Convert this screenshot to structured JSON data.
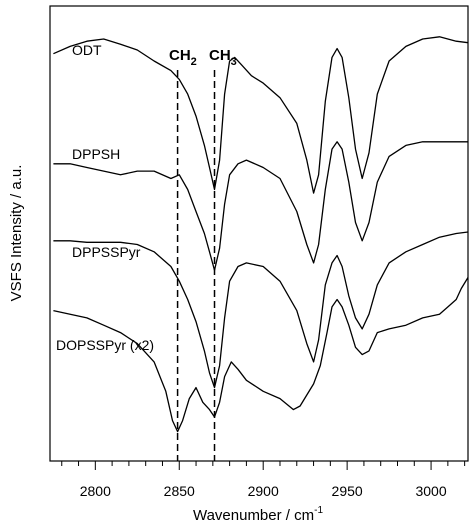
{
  "chart_data": {
    "type": "line",
    "xlabel": "Wavenumber / cm",
    "xlabel_superscript": "-1",
    "ylabel": "VSFS Intensity / a.u.",
    "xlim": [
      2773,
      3022
    ],
    "x_ticks": [
      2800,
      2850,
      2900,
      2950,
      3000
    ],
    "y_ticks_shown": false,
    "grid": false,
    "legend": "none",
    "reference_lines": [
      {
        "x": 2849,
        "style": "dashed",
        "label_main": "CH",
        "label_sub": "2"
      },
      {
        "x": 2871,
        "style": "dashed",
        "label_main": "CH",
        "label_sub": "3"
      }
    ],
    "series": [
      {
        "name": "ODT",
        "x": [
          2775,
          2785,
          2795,
          2805,
          2815,
          2825,
          2835,
          2845,
          2850,
          2855,
          2860,
          2865,
          2868,
          2871,
          2874,
          2877,
          2880,
          2883,
          2887,
          2893,
          2900,
          2910,
          2920,
          2926,
          2930,
          2933,
          2937,
          2941,
          2944,
          2947,
          2951,
          2955,
          2959,
          2963,
          2968,
          2975,
          2985,
          2995,
          3005,
          3015,
          3022
        ],
        "y": [
          4.65,
          4.75,
          4.82,
          4.85,
          4.78,
          4.7,
          4.55,
          4.42,
          4.3,
          4.1,
          3.8,
          3.4,
          3.1,
          2.8,
          3.2,
          4.1,
          4.55,
          4.6,
          4.5,
          4.35,
          4.25,
          4.05,
          3.7,
          3.2,
          2.75,
          3.0,
          4.0,
          4.6,
          4.72,
          4.6,
          4.05,
          3.35,
          2.95,
          3.3,
          4.1,
          4.55,
          4.75,
          4.85,
          4.88,
          4.82,
          4.8
        ]
      },
      {
        "name": "DPPSH",
        "x": [
          2775,
          2785,
          2795,
          2805,
          2815,
          2825,
          2835,
          2845,
          2850,
          2855,
          2860,
          2865,
          2868,
          2871,
          2874,
          2877,
          2880,
          2885,
          2890,
          2900,
          2910,
          2920,
          2926,
          2930,
          2933,
          2937,
          2941,
          2944,
          2947,
          2951,
          2955,
          2959,
          2963,
          2968,
          2975,
          2985,
          2995,
          3005,
          3015,
          3022
        ],
        "y": [
          3.15,
          3.15,
          3.1,
          3.05,
          3.0,
          3.05,
          3.05,
          2.95,
          3.0,
          2.8,
          2.5,
          2.2,
          1.95,
          1.7,
          2.0,
          2.6,
          3.0,
          3.15,
          3.2,
          3.1,
          2.95,
          2.5,
          2.05,
          1.8,
          2.05,
          2.8,
          3.35,
          3.45,
          3.35,
          2.9,
          2.35,
          2.1,
          2.35,
          2.9,
          3.25,
          3.4,
          3.45,
          3.45,
          3.45,
          3.45
        ]
      },
      {
        "name": "DPPSSPyr",
        "x": [
          2775,
          2785,
          2795,
          2805,
          2815,
          2825,
          2835,
          2845,
          2850,
          2855,
          2860,
          2865,
          2868,
          2871,
          2874,
          2877,
          2880,
          2885,
          2890,
          2900,
          2910,
          2920,
          2926,
          2930,
          2933,
          2937,
          2941,
          2944,
          2947,
          2951,
          2955,
          2959,
          2963,
          2968,
          2975,
          2985,
          2995,
          3005,
          3015,
          3022
        ],
        "y": [
          2.1,
          2.1,
          2.08,
          2.08,
          2.08,
          2.05,
          1.95,
          1.75,
          1.55,
          1.3,
          1.0,
          0.6,
          0.3,
          0.1,
          0.4,
          1.05,
          1.55,
          1.75,
          1.8,
          1.75,
          1.55,
          1.15,
          0.7,
          0.45,
          0.75,
          1.5,
          1.8,
          1.9,
          1.75,
          1.35,
          1.05,
          0.9,
          1.1,
          1.5,
          1.8,
          1.95,
          2.05,
          2.15,
          2.2,
          2.22
        ]
      },
      {
        "name": "DOPSSPyr (x2)",
        "x": [
          2775,
          2785,
          2795,
          2805,
          2815,
          2825,
          2835,
          2842,
          2846,
          2849,
          2852,
          2856,
          2860,
          2864,
          2868,
          2871,
          2874,
          2877,
          2881,
          2885,
          2890,
          2900,
          2910,
          2918,
          2922,
          2926,
          2930,
          2934,
          2938,
          2941,
          2944,
          2947,
          2951,
          2955,
          2959,
          2963,
          2968,
          2975,
          2985,
          2995,
          3005,
          3010,
          3015,
          3018,
          3022
        ],
        "y": [
          1.15,
          1.1,
          1.05,
          0.95,
          0.85,
          0.7,
          0.45,
          0.05,
          -0.35,
          -0.5,
          -0.35,
          -0.05,
          0.1,
          -0.1,
          -0.2,
          -0.3,
          -0.1,
          0.25,
          0.45,
          0.35,
          0.2,
          0.05,
          -0.05,
          -0.2,
          -0.15,
          0.0,
          0.15,
          0.4,
          0.85,
          1.2,
          1.3,
          1.2,
          0.95,
          0.65,
          0.55,
          0.6,
          0.85,
          0.9,
          0.95,
          1.05,
          1.1,
          1.2,
          1.3,
          1.45,
          1.6
        ]
      }
    ]
  }
}
